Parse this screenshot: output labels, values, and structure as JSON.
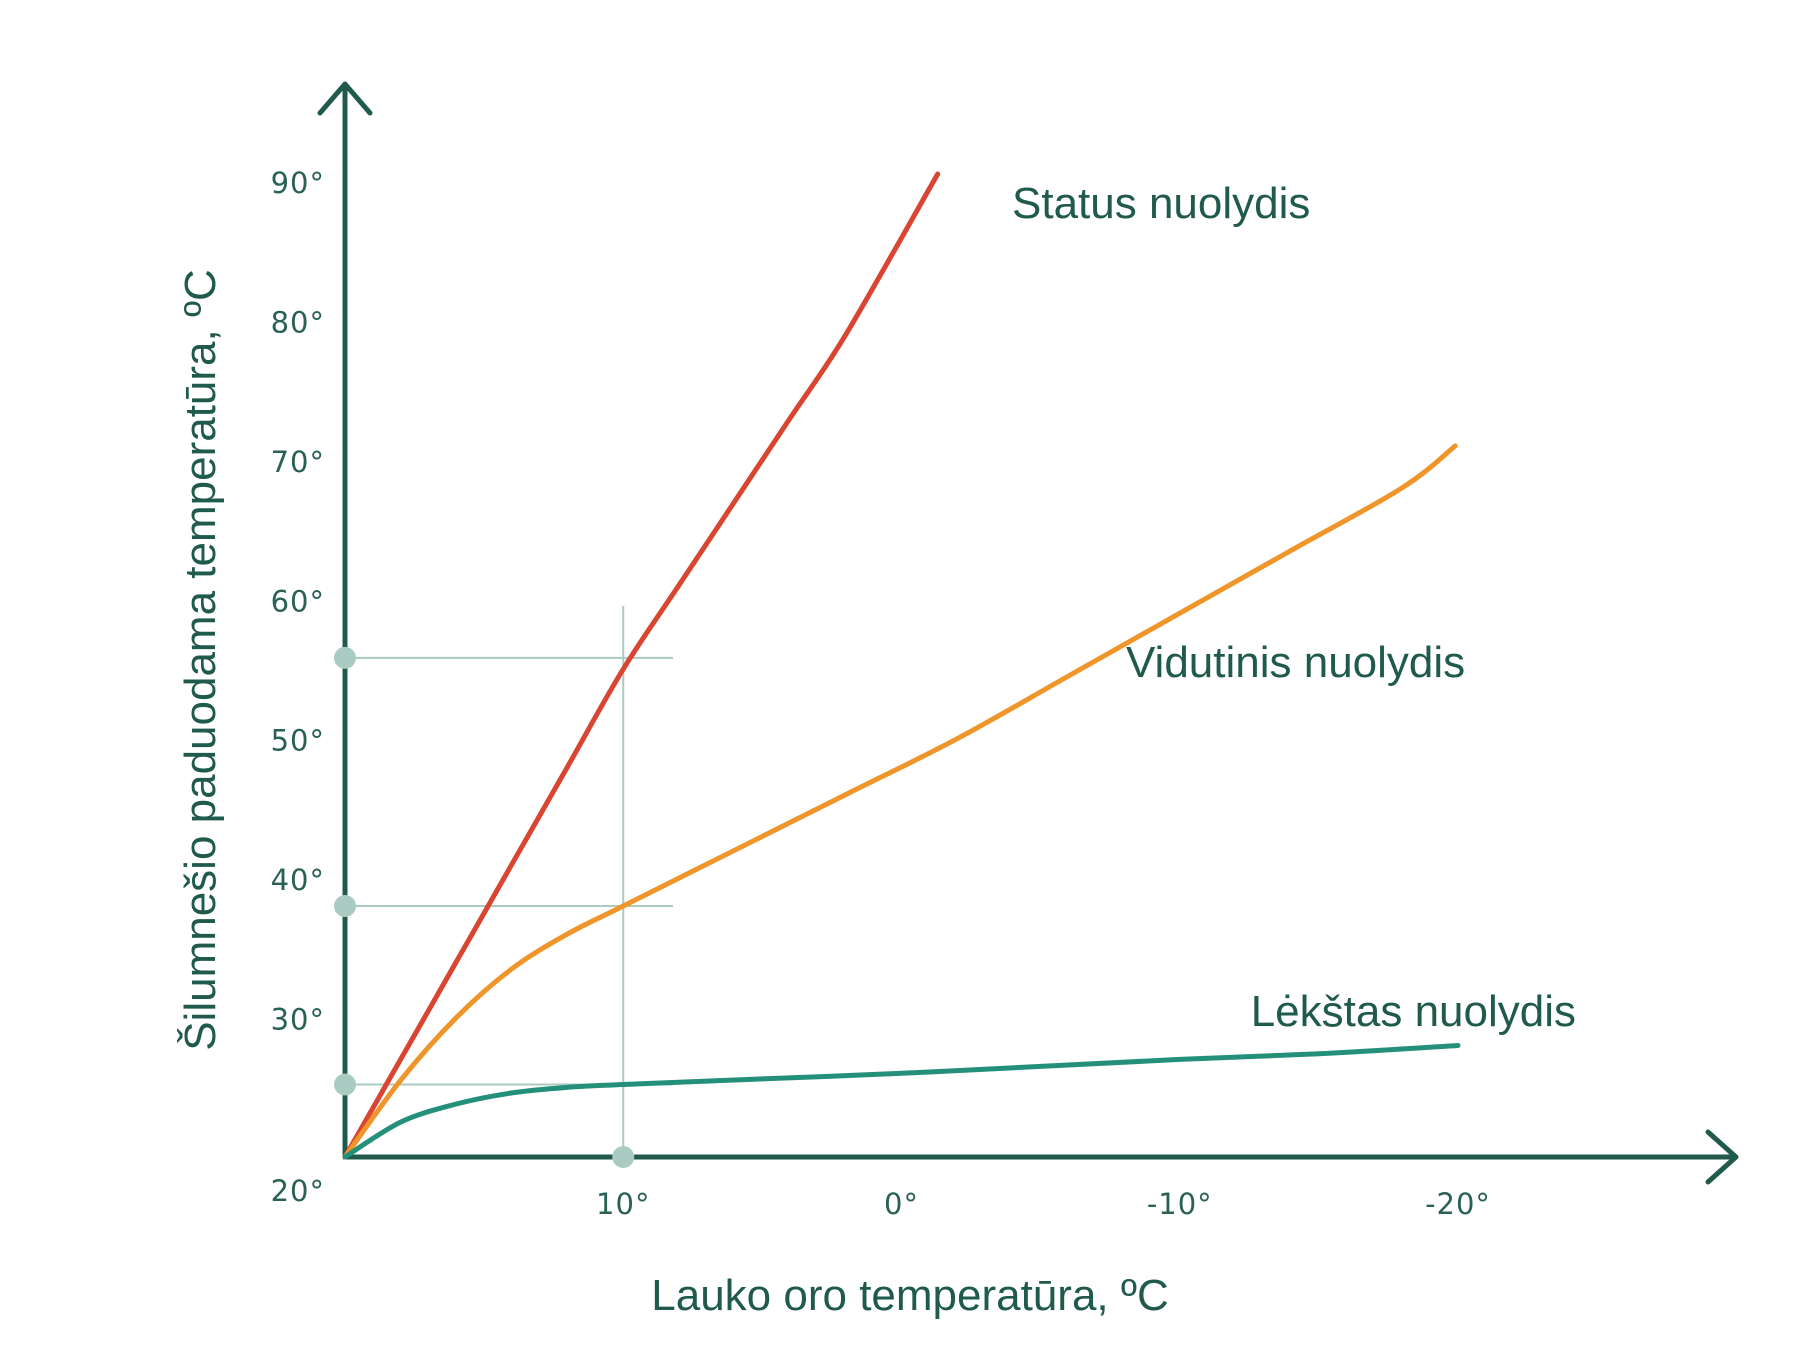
{
  "chart_data": {
    "type": "line",
    "title": "",
    "xlabel": "Lauko oro temperatūra, ºC",
    "ylabel": "Šilumnešio paduodama temperatūra, ºC",
    "x_reversed": true,
    "xlim": [
      20,
      -20
    ],
    "ylim": [
      20,
      90
    ],
    "x_ticks": [
      {
        "value": 10,
        "label": "10°"
      },
      {
        "value": 0,
        "label": "0°"
      },
      {
        "value": -10,
        "label": "-10°"
      },
      {
        "value": -20,
        "label": "-20°"
      }
    ],
    "y_ticks": [
      {
        "value": 20,
        "label": "20°"
      },
      {
        "value": 30,
        "label": "30°"
      },
      {
        "value": 40,
        "label": "40°"
      },
      {
        "value": 50,
        "label": "50°"
      },
      {
        "value": 60,
        "label": "60°"
      },
      {
        "value": 70,
        "label": "70°"
      },
      {
        "value": 80,
        "label": "80°"
      },
      {
        "value": 90,
        "label": "90°"
      }
    ],
    "grid": false,
    "series": [
      {
        "name": "Status nuolydis",
        "color": "#d94530",
        "x": [
          20,
          18,
          16,
          14,
          12,
          10,
          8,
          6,
          4,
          2,
          -1.3
        ],
        "y": [
          20,
          27,
          34,
          41,
          48,
          55,
          61,
          67,
          73,
          79,
          90.5
        ]
      },
      {
        "name": "Vidutinis nuolydis",
        "color": "#f0952a",
        "x": [
          20,
          18,
          16,
          14,
          12,
          10,
          6,
          2,
          -2,
          -6,
          -10,
          -14,
          -18,
          -19.9
        ],
        "y": [
          20,
          25.5,
          30,
          33.5,
          36,
          38,
          42,
          46,
          50,
          54.5,
          59,
          63.5,
          68,
          71
        ]
      },
      {
        "name": "Lėkštas nuolydis",
        "color": "#24907a",
        "x": [
          20,
          18,
          16,
          14,
          12,
          10,
          5,
          0,
          -5,
          -10,
          -15,
          -20
        ],
        "y": [
          20,
          22.5,
          23.8,
          24.6,
          25,
          25.2,
          25.6,
          26,
          26.5,
          27,
          27.4,
          28
        ]
      }
    ],
    "reference": {
      "x": 10,
      "y_values": [
        55.8,
        38,
        25.2
      ],
      "color": "#a9cbc2"
    },
    "axis_color": "#1f5a4c"
  }
}
